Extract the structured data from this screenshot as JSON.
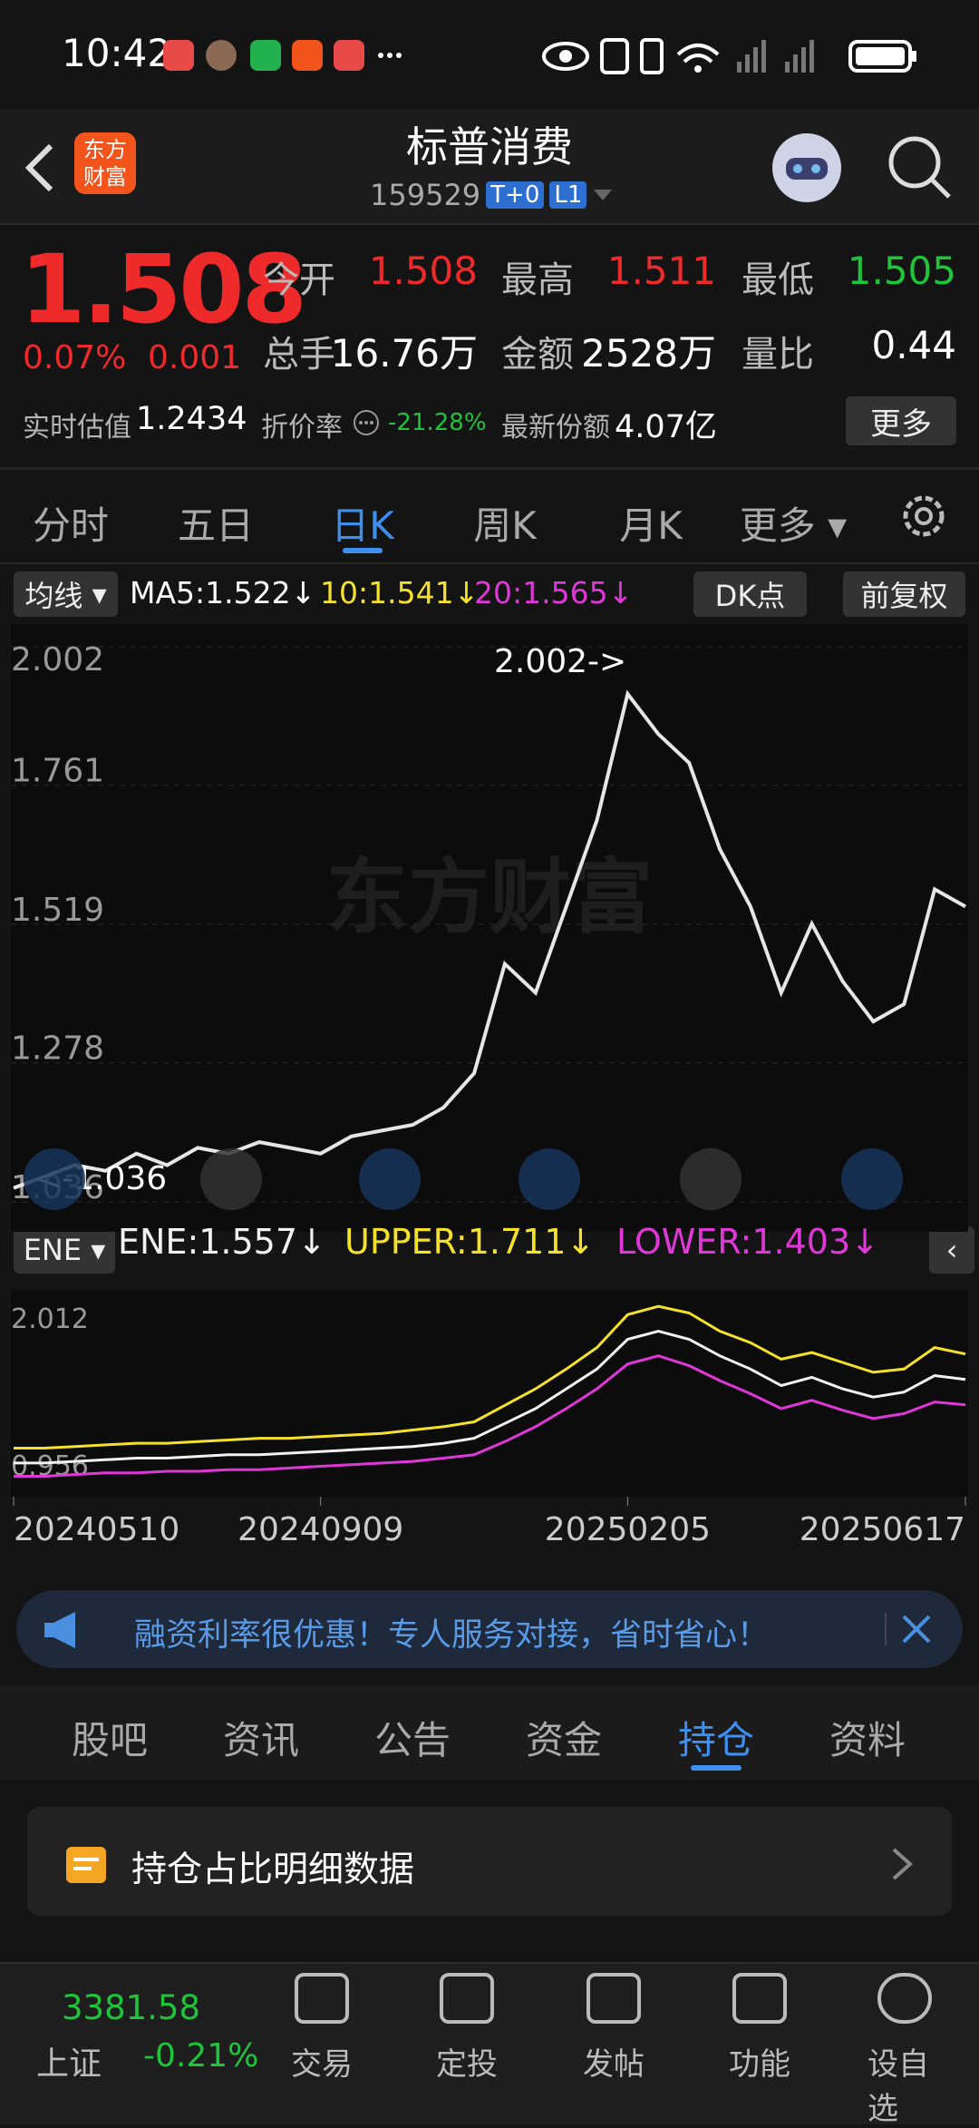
{
  "status": {
    "time": "10:42"
  },
  "header": {
    "title": "标普消费",
    "code": "159529",
    "badges": [
      "T+0",
      "L1"
    ],
    "logo": [
      "东方",
      "财富"
    ]
  },
  "quote": {
    "price": "1.508",
    "change_pct": "0.07%",
    "change": "0.001",
    "stats": [
      [
        "今开",
        "1.508"
      ],
      [
        "最高",
        "1.511"
      ],
      [
        "最低",
        "1.505"
      ],
      [
        "总手",
        "16.76万"
      ],
      [
        "金额",
        "2528万"
      ],
      [
        "量比",
        "0.44"
      ]
    ],
    "extra": [
      [
        "实时估值",
        "1.2434"
      ],
      [
        "折价率",
        "-21.28%"
      ],
      [
        "最新份额",
        "4.07亿"
      ]
    ],
    "more": "更多"
  },
  "period_tabs": [
    "分时",
    "五日",
    "日K",
    "周K",
    "月K",
    "更多"
  ],
  "indicators": {
    "ma_button": "均线",
    "ma_legend": [
      "MA5:1.522↓",
      "10:1.541↓",
      "20:1.565↓"
    ],
    "dk": "DK点",
    "adjust": "前复权",
    "ene_button": "ENE"
  },
  "chart_data": [
    {
      "type": "line",
      "watermark": "东方财富",
      "color": "#e6e6e6",
      "grid": true,
      "values": [
        1.06,
        1.08,
        1.1,
        1.09,
        1.12,
        1.1,
        1.13,
        1.12,
        1.14,
        1.13,
        1.12,
        1.15,
        1.16,
        1.17,
        1.2,
        1.26,
        1.45,
        1.4,
        1.55,
        1.7,
        1.92,
        1.85,
        1.8,
        1.65,
        1.55,
        1.4,
        1.52,
        1.42,
        1.35,
        1.38,
        1.58,
        1.55
      ],
      "ylim": [
        1.036,
        2.002
      ],
      "yticks": [
        2.002,
        1.761,
        1.519,
        1.278,
        1.036
      ],
      "annotations": [
        "2.002->",
        "<-1.036"
      ]
    },
    {
      "type": "line",
      "grid": false,
      "x": [
        "20240510",
        null,
        null,
        null,
        null,
        null,
        null,
        null,
        null,
        null,
        "20240909",
        null,
        null,
        null,
        null,
        null,
        null,
        null,
        null,
        null,
        "20250205",
        null,
        null,
        null,
        null,
        null,
        null,
        null,
        null,
        null,
        null,
        "20250617"
      ],
      "series": [
        {
          "name": "ENE:1.557↓",
          "color": "#f2f2f2",
          "values": [
            1.05,
            1.05,
            1.06,
            1.07,
            1.08,
            1.08,
            1.09,
            1.1,
            1.1,
            1.11,
            1.12,
            1.13,
            1.14,
            1.15,
            1.17,
            1.2,
            1.29,
            1.38,
            1.5,
            1.62,
            1.8,
            1.85,
            1.8,
            1.7,
            1.62,
            1.52,
            1.57,
            1.5,
            1.45,
            1.48,
            1.58,
            1.557
          ]
        },
        {
          "name": "UPPER:1.711↓",
          "color": "#f5e12a",
          "values": [
            1.14,
            1.14,
            1.15,
            1.16,
            1.17,
            1.17,
            1.18,
            1.19,
            1.2,
            1.2,
            1.21,
            1.22,
            1.23,
            1.25,
            1.27,
            1.3,
            1.4,
            1.5,
            1.62,
            1.75,
            1.95,
            2.0,
            1.96,
            1.85,
            1.78,
            1.68,
            1.72,
            1.66,
            1.6,
            1.62,
            1.75,
            1.711
          ]
        },
        {
          "name": "LOWER:1.403↓",
          "color": "#e038d8",
          "values": [
            0.97,
            0.97,
            0.98,
            0.99,
            0.99,
            1.0,
            1.0,
            1.01,
            1.01,
            1.02,
            1.03,
            1.04,
            1.05,
            1.06,
            1.08,
            1.1,
            1.18,
            1.27,
            1.38,
            1.5,
            1.65,
            1.7,
            1.64,
            1.55,
            1.47,
            1.38,
            1.43,
            1.37,
            1.32,
            1.35,
            1.42,
            1.403
          ]
        }
      ],
      "ylim": [
        0.956,
        2.012
      ],
      "yticks": [
        2.012,
        0.956
      ]
    }
  ],
  "ad": {
    "text": "融资利率很优惠！专人服务对接，省时省心！"
  },
  "content_tabs": [
    "股吧",
    "资讯",
    "公告",
    "资金",
    "持仓",
    "资料"
  ],
  "card": {
    "title": "持仓占比明细数据"
  },
  "bottom_nav": {
    "index_value": "3381.58",
    "index_name": "上证",
    "index_change": "-0.21%",
    "items": [
      "交易",
      "定投",
      "发帖",
      "功能",
      "设自选"
    ]
  }
}
